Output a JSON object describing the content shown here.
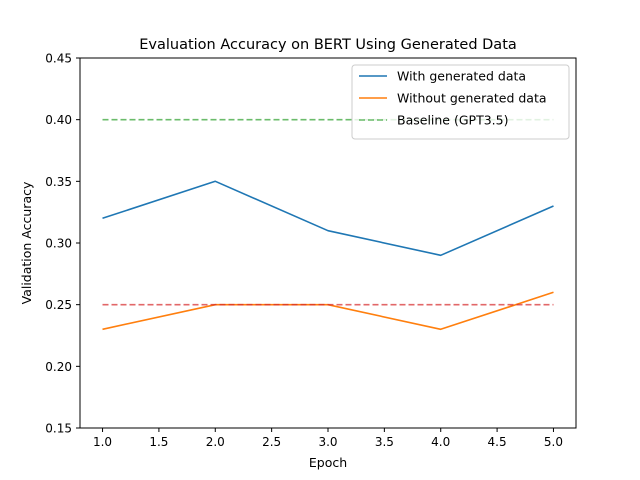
{
  "chart_data": {
    "type": "line",
    "title": "Evaluation Accuracy on BERT Using Generated Data",
    "xlabel": "Epoch",
    "ylabel": "Validation Accuracy",
    "xlim": [
      0.8,
      5.2
    ],
    "ylim": [
      0.15,
      0.45
    ],
    "xticks": [
      1.0,
      1.5,
      2.0,
      2.5,
      3.0,
      3.5,
      4.0,
      4.5,
      5.0
    ],
    "xtick_labels": [
      "1.0",
      "1.5",
      "2.0",
      "2.5",
      "3.0",
      "3.5",
      "4.0",
      "4.5",
      "5.0"
    ],
    "yticks": [
      0.15,
      0.2,
      0.25,
      0.3,
      0.35,
      0.4,
      0.45
    ],
    "ytick_labels": [
      "0.15",
      "0.20",
      "0.25",
      "0.30",
      "0.35",
      "0.40",
      "0.45"
    ],
    "grid": false,
    "legend_position": "top-right",
    "x": [
      1,
      2,
      3,
      4,
      5
    ],
    "series": [
      {
        "name": "With generated data",
        "values": [
          0.32,
          0.35,
          0.31,
          0.29,
          0.33
        ],
        "color": "#1f77b4",
        "style": "solid",
        "in_legend": true
      },
      {
        "name": "Without generated data",
        "values": [
          0.23,
          0.25,
          0.25,
          0.23,
          0.26
        ],
        "color": "#ff7f0e",
        "style": "solid",
        "in_legend": true
      },
      {
        "name": "Baseline (GPT3.5)",
        "values": [
          0.4,
          0.4,
          0.4,
          0.4,
          0.4
        ],
        "color": "#2ca02c",
        "style": "dashed",
        "in_legend": true
      },
      {
        "name": "",
        "values": [
          0.25,
          0.25,
          0.25,
          0.25,
          0.25
        ],
        "color": "#d62728",
        "style": "dashed",
        "in_legend": false
      }
    ]
  }
}
